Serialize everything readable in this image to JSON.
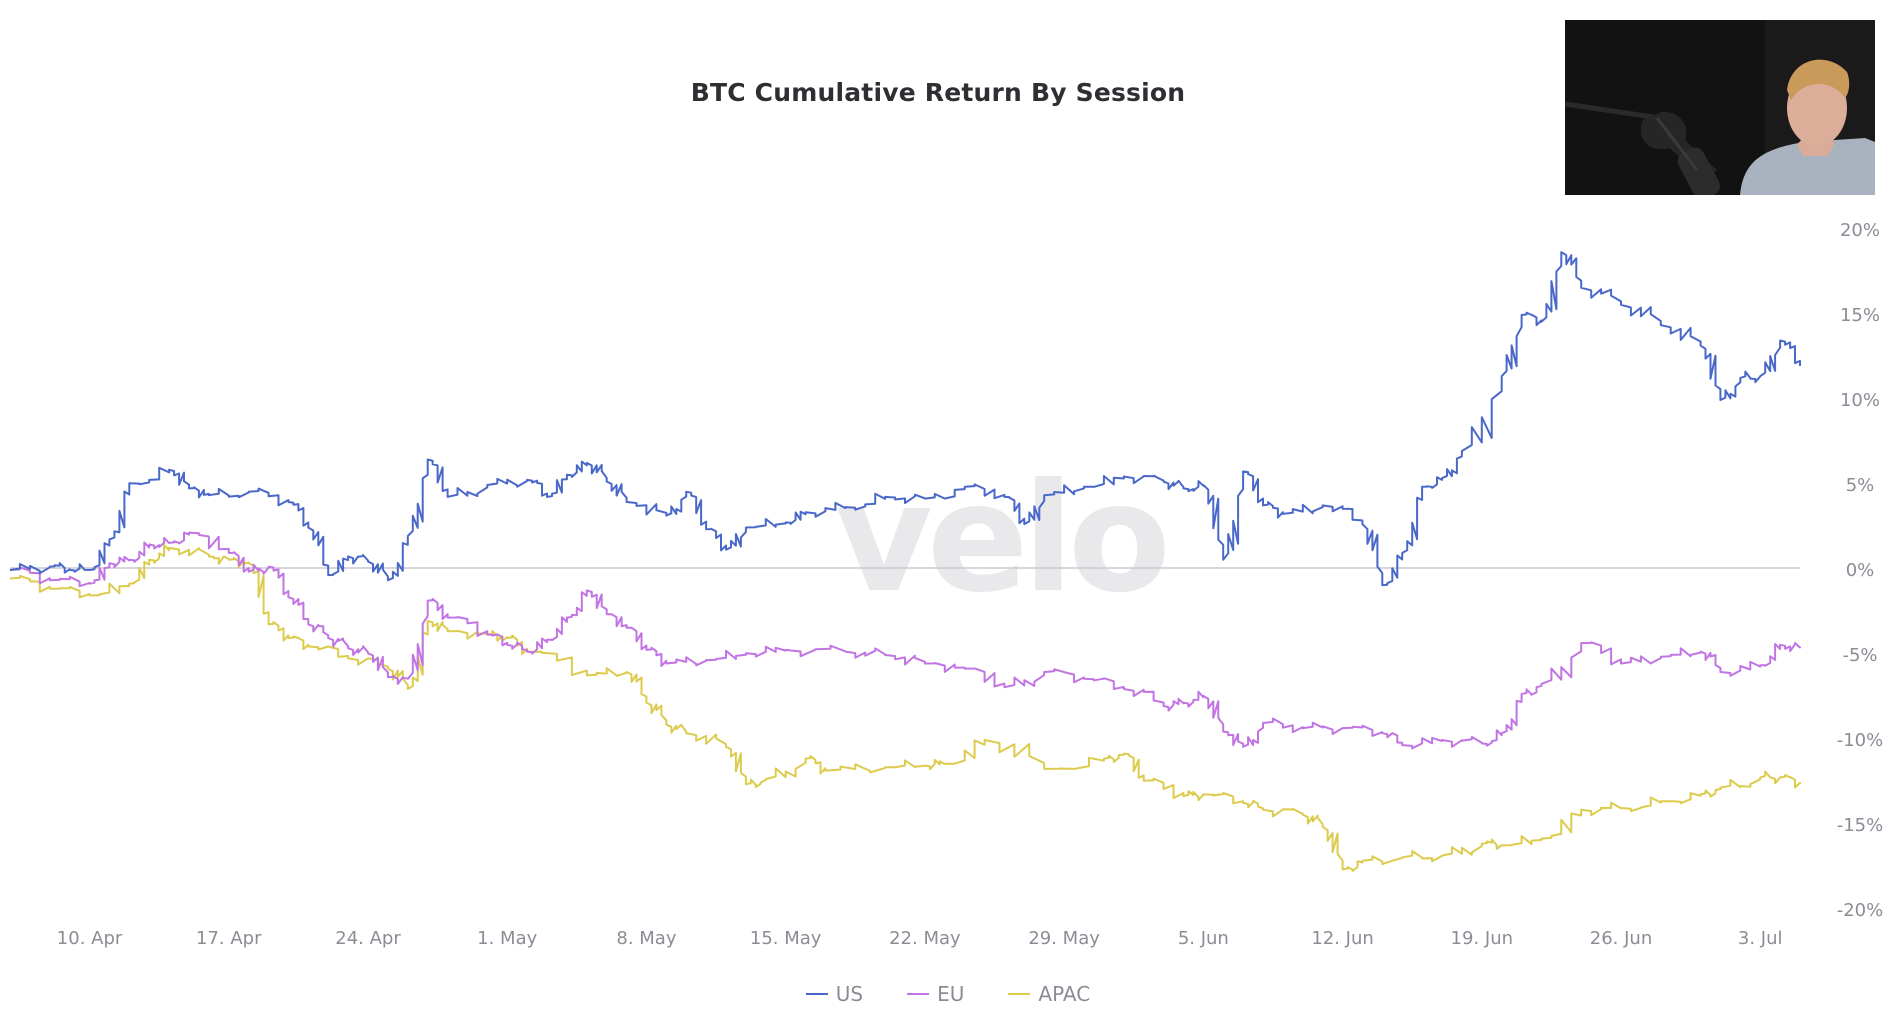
{
  "chart_data": {
    "type": "line",
    "title": "BTC Cumulative Return By Session",
    "x_ticks": [
      "10. Apr",
      "17. Apr",
      "24. Apr",
      "1. May",
      "8. May",
      "15. May",
      "22. May",
      "29. May",
      "5. Jun",
      "12. Jun",
      "19. Jun",
      "26. Jun",
      "3. Jul"
    ],
    "y_ticks": [
      "20%",
      "15%",
      "10%",
      "5%",
      "0%",
      "-5%",
      "-10%",
      "-15%",
      "-20%"
    ],
    "ylim": [
      -20,
      20
    ],
    "xlim": [
      "2023-04-06",
      "2023-07-05"
    ],
    "y_unit": "%",
    "grid": false,
    "legend_position": "bottom",
    "watermark": "velo",
    "series": [
      {
        "name": "US",
        "color": "#4a68c9",
        "x": [
          "2023-04-06",
          "2023-04-08",
          "2023-04-09",
          "2023-04-10",
          "2023-04-11",
          "2023-04-12",
          "2023-04-14",
          "2023-04-15",
          "2023-04-16",
          "2023-04-18",
          "2023-04-20",
          "2023-04-21",
          "2023-04-22",
          "2023-04-23",
          "2023-04-24",
          "2023-04-25",
          "2023-04-26",
          "2023-04-27",
          "2023-04-28",
          "2023-04-30",
          "2023-05-02",
          "2023-05-03",
          "2023-05-04",
          "2023-05-05",
          "2023-05-06",
          "2023-05-07",
          "2023-05-09",
          "2023-05-10",
          "2023-05-11",
          "2023-05-12",
          "2023-05-13",
          "2023-05-15",
          "2023-05-16",
          "2023-05-18",
          "2023-05-20",
          "2023-05-22",
          "2023-05-24",
          "2023-05-26",
          "2023-05-27",
          "2023-05-28",
          "2023-05-30",
          "2023-06-01",
          "2023-06-03",
          "2023-06-04",
          "2023-06-05",
          "2023-06-06",
          "2023-06-07",
          "2023-06-08",
          "2023-06-09",
          "2023-06-11",
          "2023-06-13",
          "2023-06-14",
          "2023-06-15",
          "2023-06-16",
          "2023-06-17",
          "2023-06-18",
          "2023-06-20",
          "2023-06-21",
          "2023-06-22",
          "2023-06-23",
          "2023-06-24",
          "2023-06-26",
          "2023-06-28",
          "2023-06-30",
          "2023-07-01",
          "2023-07-02",
          "2023-07-03",
          "2023-07-04",
          "2023-07-05"
        ],
        "values": [
          0,
          0.2,
          0,
          0,
          1.8,
          5.1,
          5.9,
          4.8,
          4.4,
          4.6,
          4.0,
          2.5,
          -0.3,
          0.8,
          0.5,
          -0.6,
          2.0,
          6.5,
          4.3,
          5.0,
          5.3,
          4.3,
          5.6,
          6.3,
          5.2,
          4.0,
          3.2,
          4.6,
          2.4,
          1.2,
          2.5,
          2.8,
          3.4,
          3.7,
          4.3,
          4.2,
          4.9,
          4.3,
          2.7,
          4.4,
          4.9,
          5.5,
          5.2,
          4.8,
          5.0,
          0.6,
          5.8,
          3.8,
          3.3,
          3.8,
          2.7,
          -0.9,
          1.0,
          4.9,
          5.4,
          7.0,
          11.4,
          15.0,
          14.6,
          18.7,
          16.6,
          15.6,
          14.4,
          13.2,
          10.0,
          11.3,
          11.4,
          13.5,
          12.0
        ]
      },
      {
        "name": "EU",
        "color": "#c174e3",
        "x": [
          "2023-04-06",
          "2023-04-08",
          "2023-04-10",
          "2023-04-11",
          "2023-04-12",
          "2023-04-13",
          "2023-04-14",
          "2023-04-15",
          "2023-04-17",
          "2023-04-18",
          "2023-04-19",
          "2023-04-20",
          "2023-04-21",
          "2023-04-22",
          "2023-04-23",
          "2023-04-24",
          "2023-04-25",
          "2023-04-26",
          "2023-04-27",
          "2023-04-28",
          "2023-04-30",
          "2023-05-01",
          "2023-05-02",
          "2023-05-03",
          "2023-05-04",
          "2023-05-05",
          "2023-05-06",
          "2023-05-07",
          "2023-05-08",
          "2023-05-09",
          "2023-05-11",
          "2023-05-13",
          "2023-05-15",
          "2023-05-18",
          "2023-05-20",
          "2023-05-22",
          "2023-05-24",
          "2023-05-26",
          "2023-05-28",
          "2023-05-30",
          "2023-06-01",
          "2023-06-03",
          "2023-06-04",
          "2023-06-05",
          "2023-06-06",
          "2023-06-07",
          "2023-06-08",
          "2023-06-10",
          "2023-06-12",
          "2023-06-14",
          "2023-06-15",
          "2023-06-17",
          "2023-06-19",
          "2023-06-20",
          "2023-06-21",
          "2023-06-22",
          "2023-06-24",
          "2023-06-26",
          "2023-06-28",
          "2023-06-30",
          "2023-07-01",
          "2023-07-03",
          "2023-07-04",
          "2023-07-05"
        ],
        "values": [
          0,
          -0.6,
          -0.8,
          0.4,
          0.6,
          1.5,
          1.6,
          2.2,
          1.0,
          -0.1,
          0.2,
          -1.6,
          -3.2,
          -4.0,
          -4.6,
          -4.9,
          -6.3,
          -6.4,
          -1.8,
          -2.8,
          -3.8,
          -4.4,
          -4.8,
          -4.1,
          -2.8,
          -1.2,
          -2.6,
          -3.4,
          -4.7,
          -5.5,
          -5.3,
          -4.9,
          -4.7,
          -4.8,
          -5.0,
          -5.5,
          -5.8,
          -6.9,
          -6.0,
          -6.4,
          -7.0,
          -8.0,
          -7.8,
          -7.4,
          -9.5,
          -10.4,
          -9.0,
          -9.3,
          -9.3,
          -9.6,
          -10.3,
          -10.0,
          -10.2,
          -9.6,
          -7.3,
          -6.7,
          -4.3,
          -5.5,
          -5.1,
          -4.8,
          -6.0,
          -5.6,
          -4.4,
          -4.6
        ]
      },
      {
        "name": "APAC",
        "color": "#dccb4c",
        "x": [
          "2023-04-06",
          "2023-04-08",
          "2023-04-10",
          "2023-04-12",
          "2023-04-13",
          "2023-04-14",
          "2023-04-16",
          "2023-04-17",
          "2023-04-18",
          "2023-04-19",
          "2023-04-20",
          "2023-04-21",
          "2023-04-23",
          "2023-04-25",
          "2023-04-26",
          "2023-04-27",
          "2023-04-28",
          "2023-04-30",
          "2023-05-01",
          "2023-05-02",
          "2023-05-05",
          "2023-05-07",
          "2023-05-08",
          "2023-05-09",
          "2023-05-10",
          "2023-05-12",
          "2023-05-13",
          "2023-05-14",
          "2023-05-16",
          "2023-05-17",
          "2023-05-20",
          "2023-05-22",
          "2023-05-23",
          "2023-05-25",
          "2023-05-28",
          "2023-05-31",
          "2023-06-01",
          "2023-06-02",
          "2023-06-04",
          "2023-06-05",
          "2023-06-07",
          "2023-06-08",
          "2023-06-10",
          "2023-06-11",
          "2023-06-12",
          "2023-06-13",
          "2023-06-15",
          "2023-06-17",
          "2023-06-19",
          "2023-06-20",
          "2023-06-22",
          "2023-06-24",
          "2023-06-26",
          "2023-06-28",
          "2023-06-30",
          "2023-07-01",
          "2023-07-03",
          "2023-07-04",
          "2023-07-05"
        ],
        "values": [
          -0.5,
          -1.1,
          -1.5,
          -0.8,
          0.6,
          1.3,
          0.8,
          0.6,
          0.4,
          -3.2,
          -4.0,
          -4.5,
          -5.2,
          -5.8,
          -7.0,
          -3.0,
          -3.6,
          -3.8,
          -4.0,
          -4.8,
          -6.2,
          -6.0,
          -7.8,
          -9.1,
          -9.6,
          -10.4,
          -12.6,
          -12.3,
          -11.1,
          -11.8,
          -11.6,
          -11.5,
          -11.4,
          -10.0,
          -11.7,
          -11.1,
          -10.8,
          -12.4,
          -13.3,
          -13.2,
          -13.7,
          -14.1,
          -14.4,
          -15.1,
          -17.6,
          -17.1,
          -16.9,
          -16.8,
          -16.1,
          -16.2,
          -15.8,
          -14.1,
          -14.0,
          -13.6,
          -13.2,
          -12.8,
          -12.2,
          -12.2,
          -12.6
        ]
      }
    ]
  }
}
